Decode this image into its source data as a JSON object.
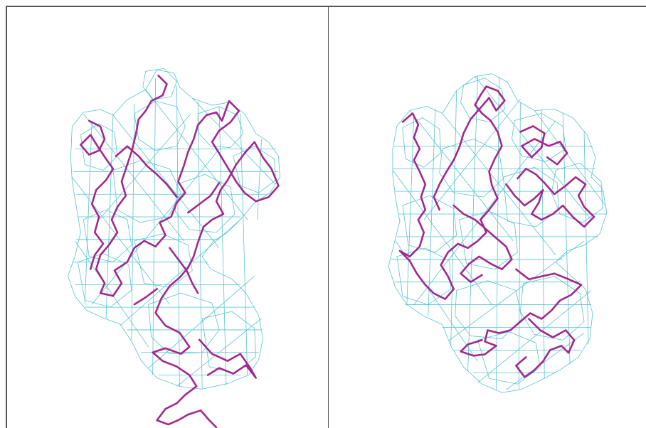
{
  "colors": {
    "density_mesh": "#56c3d3",
    "backbone_trace": "#a0288f",
    "panel_border": "#555555",
    "background": "#ffffff"
  },
  "panels": [
    {
      "id": "left",
      "content": "density-mesh-with-backbone-trace"
    },
    {
      "id": "right",
      "content": "density-mesh-with-backbone-trace"
    }
  ]
}
